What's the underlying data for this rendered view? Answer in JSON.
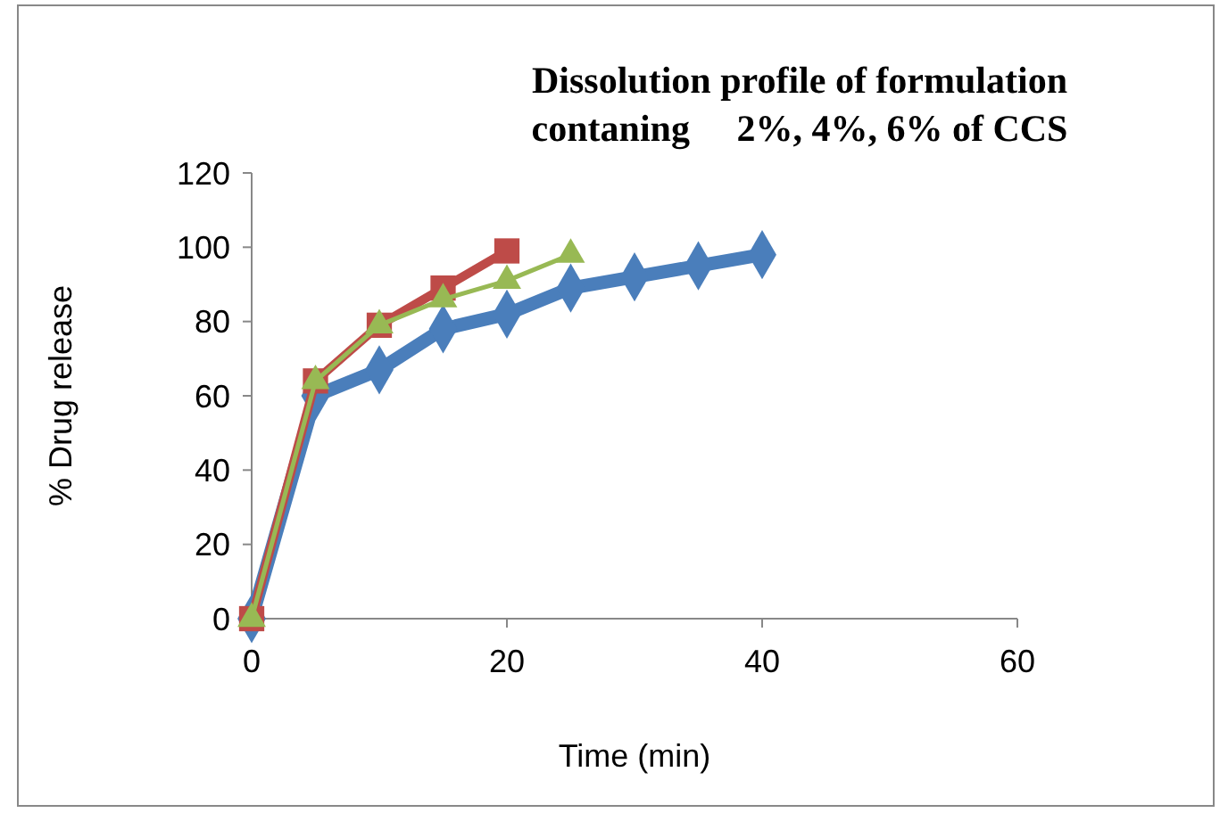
{
  "chart_data": {
    "type": "line",
    "title": "Dissolution profile of formulation\ncontaning     2%, 4%, 6% of CCS",
    "xlabel": "Time (min)",
    "ylabel": "% Drug release",
    "xlim": [
      0,
      60
    ],
    "xticks": [
      0,
      20,
      40,
      60
    ],
    "ylim": [
      0,
      120
    ],
    "yticks": [
      0,
      20,
      40,
      60,
      80,
      100,
      120
    ],
    "grid": false,
    "series": [
      {
        "color": "#4a7ebb",
        "marker": "diamond",
        "x": [
          0,
          5,
          10,
          15,
          20,
          25,
          30,
          35,
          40
        ],
        "values": [
          0,
          60,
          67,
          78,
          82,
          89,
          92,
          95,
          98
        ]
      },
      {
        "color": "#be4b48",
        "marker": "square",
        "x": [
          0,
          5,
          10,
          15,
          20
        ],
        "values": [
          0,
          64,
          79,
          89,
          99
        ]
      },
      {
        "color": "#98b954",
        "marker": "triangle",
        "x": [
          0,
          5,
          10,
          15,
          20,
          25
        ],
        "values": [
          0,
          64,
          79,
          86,
          91,
          98
        ]
      }
    ]
  }
}
